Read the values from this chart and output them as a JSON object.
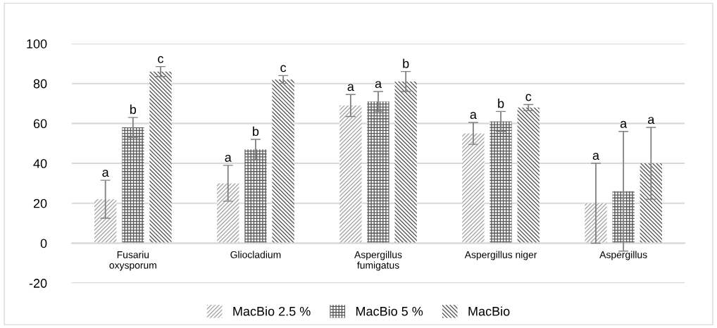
{
  "chart_data": {
    "type": "bar",
    "categories": [
      "Fusariu\noxysporum",
      "Gliocladium",
      "Aspergillus\nfumigatus",
      "Aspergillus niger",
      "Aspergillus"
    ],
    "series": [
      {
        "name": "MacBio 2.5 %",
        "color": "#a6a6a6",
        "values": [
          22,
          30,
          69,
          55,
          20
        ],
        "errors": [
          9.5,
          9,
          5.5,
          5.5,
          20
        ]
      },
      {
        "name": "MacBio 5 %",
        "color": "#595959",
        "values": [
          58,
          47,
          71,
          61,
          26
        ],
        "errors": [
          5,
          5,
          5,
          5,
          30
        ]
      },
      {
        "name": "MacBio",
        "color": "#595959",
        "values": [
          86,
          82,
          81,
          68,
          40
        ],
        "errors": [
          2.5,
          2,
          5,
          1.5,
          18
        ]
      }
    ],
    "annotations": [
      "a",
      "b",
      "c",
      "a",
      "b",
      "c",
      "a",
      "a",
      "b",
      "a",
      "b",
      "c",
      "a",
      "a",
      "a"
    ],
    "ylim": [
      -20,
      100
    ],
    "yticks": [
      -20,
      0,
      20,
      40,
      60,
      80,
      100
    ],
    "grid": "y",
    "legend": "bottom"
  }
}
